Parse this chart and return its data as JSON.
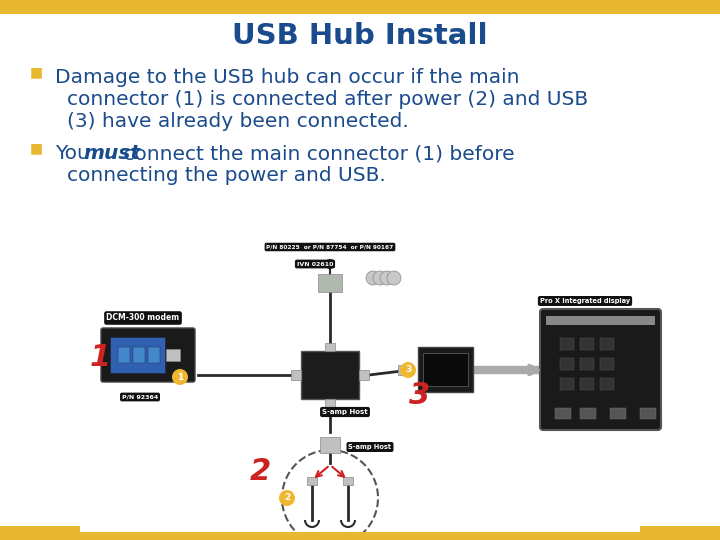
{
  "title": "USB Hub Install",
  "title_color": "#1A4B8C",
  "title_fontsize": 21,
  "header_bar_color": "#E8B830",
  "header_bar_height": 14,
  "footer_bar_color": "#E8B830",
  "footer_bar_height": 8,
  "background_color": "#FFFFFF",
  "bullet_color": "#E8B830",
  "text_color": "#1A4B8C",
  "text_fontsize": 14.5,
  "fig_width": 7.2,
  "fig_height": 5.4,
  "dpi": 100,
  "bullet1_line1": "Damage to the USB hub can occur if the main",
  "bullet1_line2": "connector (1) is connected after power (2) and USB",
  "bullet1_line3": "(3) have already been connected.",
  "bullet2_prefix": "You ",
  "bullet2_bold": "must",
  "bullet2_suffix": " connect the main connector (1) before",
  "bullet2_line2": "connecting the power and USB."
}
